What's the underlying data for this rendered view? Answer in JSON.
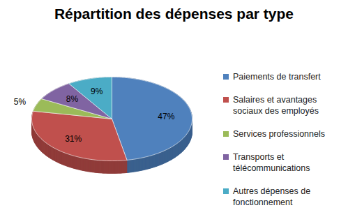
{
  "chart_data": {
    "type": "pie",
    "title": "Répartition des dépenses par type",
    "categories": [
      "Paiements de transfert",
      "Salaires et avantages sociaux des employés",
      "Services professionnels",
      "Transports et télécommunications",
      "Autres dépenses de fonctionnement"
    ],
    "values": [
      47,
      31,
      5,
      8,
      9
    ],
    "value_labels": [
      "47%",
      "31%",
      "5%",
      "8%",
      "9%"
    ],
    "colors": [
      "#4f81bd",
      "#c0504d",
      "#9bbb59",
      "#8064a2",
      "#4bacc6"
    ],
    "data_labels": true,
    "legend": "right"
  }
}
